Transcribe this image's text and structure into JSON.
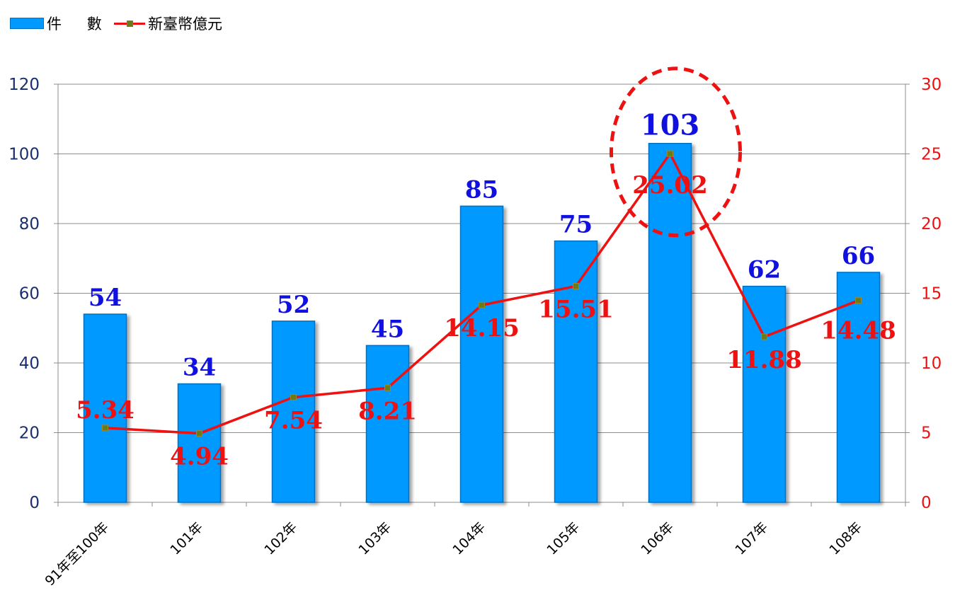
{
  "chart_data": {
    "type": "bar",
    "categories": [
      "91年至100年",
      "101年",
      "102年",
      "103年",
      "104年",
      "105年",
      "106年",
      "107年",
      "108年"
    ],
    "series": [
      {
        "name": "件　數",
        "type": "bar",
        "axis": "left",
        "color": "#0099ff",
        "values": [
          54,
          34,
          52,
          45,
          85,
          75,
          103,
          62,
          66
        ]
      },
      {
        "name": "新臺幣億元",
        "type": "line",
        "axis": "right",
        "color": "#ee1111",
        "marker_color": "#6b7a1a",
        "values": [
          5.34,
          4.94,
          7.54,
          8.21,
          14.15,
          15.51,
          25.02,
          11.88,
          14.48
        ],
        "labels": [
          "5.34",
          "4.94",
          "7.54",
          "8.21",
          "14.15",
          "15.51",
          "25.02",
          "11.88",
          "14.48"
        ]
      }
    ],
    "bar_label_color": "#1010e0",
    "left_axis": {
      "ylim": [
        0,
        120
      ],
      "ticks": [
        "0",
        "20",
        "40",
        "60",
        "80",
        "100",
        "120"
      ],
      "tick_color": "#1a2f6e"
    },
    "right_axis": {
      "ylim": [
        0,
        30
      ],
      "ticks": [
        "0",
        "5",
        "10",
        "15",
        "20",
        "25",
        "30"
      ],
      "tick_color": "#ee1111"
    },
    "grid": true,
    "legend_position": "top-left",
    "annotation": {
      "shape": "dashed-ellipse",
      "highlight_category": "106年",
      "color": "#ee1111"
    }
  }
}
